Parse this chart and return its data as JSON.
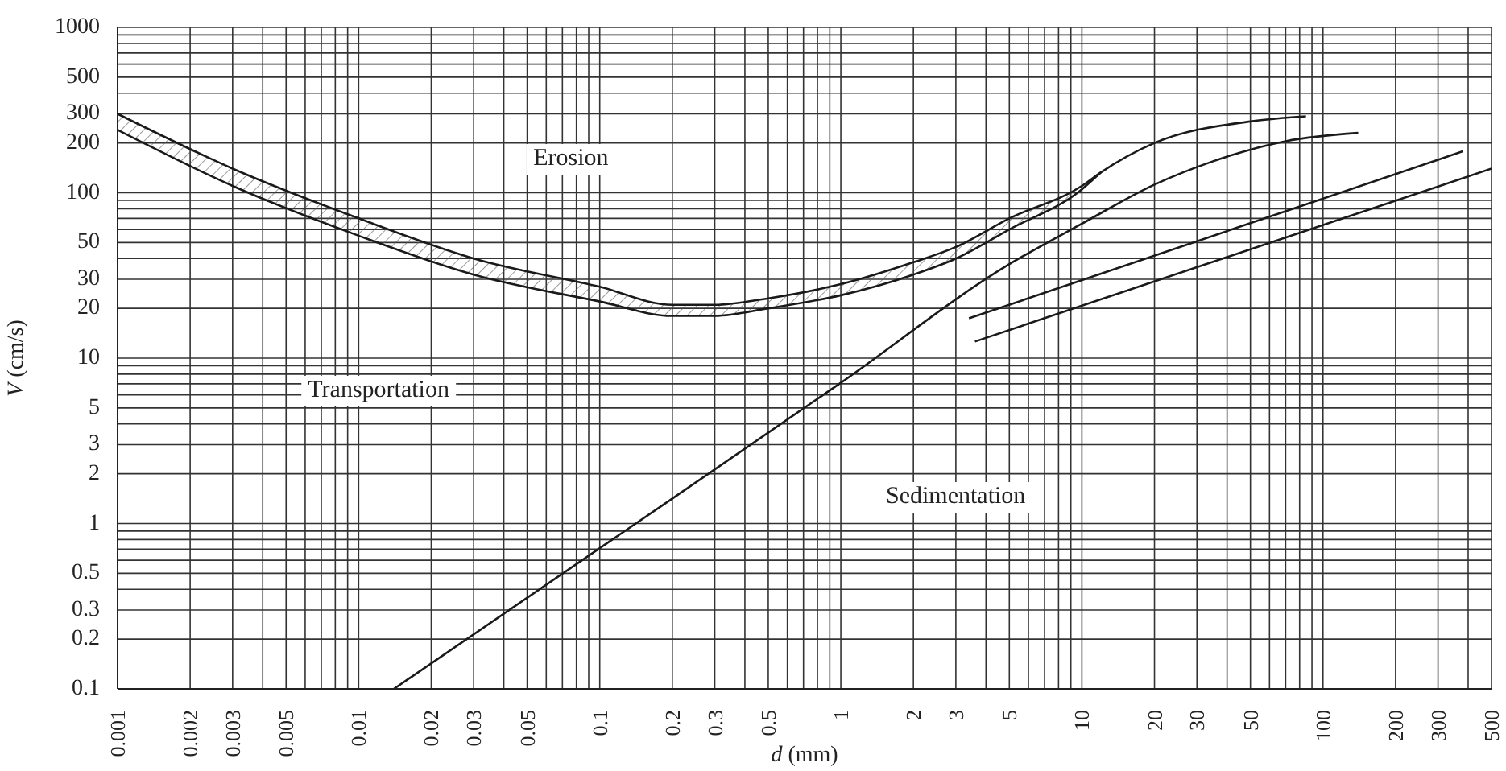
{
  "chart_data": {
    "type": "line",
    "xlabel": "d (mm)",
    "ylabel": "V (cm/s)",
    "log": "xy",
    "grid": true,
    "marker": "none",
    "line_style": "solid",
    "xlim": [
      0.001,
      500
    ],
    "ylim": [
      0.1,
      1000
    ],
    "xticks": [
      0.001,
      0.002,
      0.003,
      {
        "value": 0.004,
        "label": null
      },
      0.005,
      {
        "value": 0.006,
        "label": null
      },
      {
        "value": 0.007,
        "label": null
      },
      {
        "value": 0.008,
        "label": null
      },
      {
        "value": 0.009,
        "label": null
      },
      0.01,
      0.02,
      0.03,
      {
        "value": 0.04,
        "label": null
      },
      0.05,
      {
        "value": 0.06,
        "label": null
      },
      {
        "value": 0.07,
        "label": null
      },
      {
        "value": 0.08,
        "label": null
      },
      {
        "value": 0.09,
        "label": null
      },
      0.1,
      0.2,
      0.3,
      {
        "value": 0.4,
        "label": null
      },
      0.5,
      {
        "value": 0.6,
        "label": null
      },
      {
        "value": 0.7,
        "label": null
      },
      {
        "value": 0.8,
        "label": null
      },
      {
        "value": 0.9,
        "label": null
      },
      1,
      2,
      3,
      {
        "value": 4,
        "label": null
      },
      5,
      {
        "value": 6,
        "label": null
      },
      {
        "value": 7,
        "label": null
      },
      {
        "value": 8,
        "label": null
      },
      {
        "value": 9,
        "label": null
      },
      10,
      20,
      30,
      {
        "value": 40,
        "label": null
      },
      50,
      {
        "value": 60,
        "label": null
      },
      {
        "value": 70,
        "label": null
      },
      {
        "value": 80,
        "label": null
      },
      {
        "value": 90,
        "label": null
      },
      100,
      200,
      300,
      {
        "value": 400,
        "label": null
      },
      500
    ],
    "yticks": [
      0.1,
      0.2,
      0.3,
      {
        "value": 0.4,
        "label": null
      },
      0.5,
      {
        "value": 0.6,
        "label": null
      },
      {
        "value": 0.7,
        "label": null
      },
      {
        "value": 0.8,
        "label": null
      },
      {
        "value": 0.9,
        "label": null
      },
      1,
      2,
      3,
      {
        "value": 4,
        "label": null
      },
      5,
      {
        "value": 6,
        "label": null
      },
      {
        "value": 7,
        "label": null
      },
      {
        "value": 8,
        "label": null
      },
      {
        "value": 9,
        "label": null
      },
      10,
      20,
      30,
      {
        "value": 40,
        "label": null
      },
      50,
      {
        "value": 60,
        "label": null
      },
      {
        "value": 70,
        "label": null
      },
      {
        "value": 80,
        "label": null
      },
      {
        "value": 90,
        "label": null
      },
      100,
      200,
      300,
      {
        "value": 400,
        "label": null
      },
      500,
      {
        "value": 600,
        "label": null
      },
      {
        "value": 700,
        "label": null
      },
      {
        "value": 800,
        "label": null
      },
      {
        "value": 900,
        "label": null
      },
      1000
    ],
    "series": [
      {
        "color": "#1a1a1a",
        "x": [
          0.001,
          0.003,
          0.01,
          0.03,
          0.1,
          0.2,
          0.3,
          0.5,
          1,
          2,
          3,
          5,
          10,
          12,
          20,
          50,
          85
        ],
        "values": [
          300,
          140,
          70,
          40,
          27,
          21,
          21,
          23,
          28,
          38,
          47,
          70,
          110,
          133,
          200,
          270,
          290
        ],
        "lower": [
          240,
          110,
          55,
          32,
          22,
          18,
          18,
          20,
          24,
          32,
          40,
          60,
          105,
          133,
          null,
          null,
          null
        ],
        "upper": [
          300,
          140,
          70,
          40,
          27,
          21,
          21,
          23,
          28,
          38,
          47,
          70,
          110,
          133,
          null,
          null,
          null
        ]
      },
      {
        "color": "#1a1a1a",
        "x": [
          0.001,
          0.003,
          0.01,
          0.03,
          0.1,
          0.2,
          0.3,
          0.5,
          1,
          2,
          3,
          5,
          10,
          12
        ],
        "values": [
          240,
          110,
          55,
          32,
          22,
          18,
          18,
          20,
          24,
          32,
          40,
          60,
          105,
          133
        ]
      },
      {
        "color": "#1a1a1a",
        "x": [
          0.014,
          0.1,
          1,
          5,
          10,
          20,
          35,
          70,
          140
        ],
        "values": [
          0.1,
          0.71,
          7.1,
          37,
          65,
          112,
          155,
          205,
          230
        ]
      },
      {
        "color": "#1a1a1a",
        "x": [
          3.4,
          380
        ],
        "values": [
          17.4,
          178
        ]
      },
      {
        "color": "#1a1a1a",
        "x": [
          3.6,
          500
        ],
        "values": [
          12.6,
          140
        ]
      }
    ],
    "annotations": [
      "Erosion",
      "Transportation",
      "Sedimentation"
    ]
  }
}
